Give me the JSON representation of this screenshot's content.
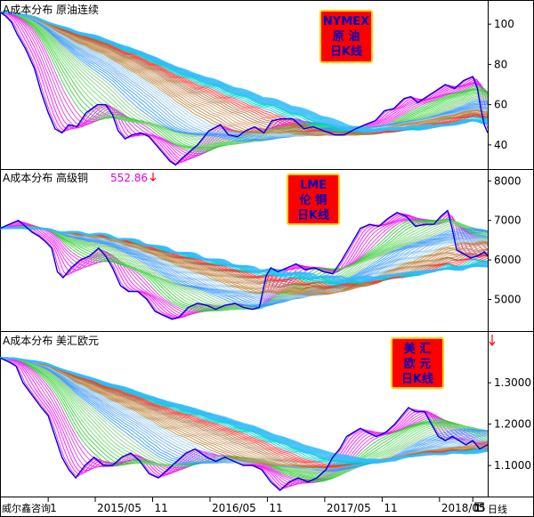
{
  "footer": {
    "left_label": "威尔鑫咨询",
    "period_label": "日线",
    "x_ticks": [
      {
        "label": "1",
        "value": 2014.92
      },
      {
        "label": "2015/05",
        "value": 2015.33
      },
      {
        "label": "11",
        "value": 2015.83
      },
      {
        "label": "2016/05",
        "value": 2016.33
      },
      {
        "label": "11",
        "value": 2016.83
      },
      {
        "label": "2017/05",
        "value": 2017.33
      },
      {
        "label": "11",
        "value": 2017.83
      },
      {
        "label": "2018/05",
        "value": 2018.33
      },
      {
        "label": "1",
        "value": 2018.62
      }
    ]
  },
  "colors": {
    "price_line": "#0000dd",
    "badge_fill": "#ff0000",
    "badge_border": "#ffd000",
    "badge_text": "#0000c0",
    "quote": "#e000e0",
    "arrow": "#ff0000",
    "frame": "#000000",
    "band_palette": [
      "#ff00ff",
      "#dd33dd",
      "#33cc33",
      "#66dd66",
      "#88cc88",
      "#3399ff",
      "#66aaee",
      "#99ccee",
      "#bb8844",
      "#cc9966",
      "#aa7744",
      "#ff3333",
      "#00cccc",
      "#33bbff"
    ]
  },
  "chart_data": [
    {
      "type": "line",
      "title": "A成本分布 原油连续",
      "quote": "",
      "badge": [
        "NYMEX",
        "原 油",
        "日K线"
      ],
      "ylim": [
        28,
        112
      ],
      "yticks": [
        40,
        60,
        80,
        100
      ],
      "xlim": [
        2014.5,
        2018.75
      ],
      "series": [
        {
          "values": [
            [
              2014.5,
              106
            ],
            [
              2014.55,
              104
            ],
            [
              2014.6,
              101
            ],
            [
              2014.65,
              95
            ],
            [
              2014.72,
              88
            ],
            [
              2014.8,
              78
            ],
            [
              2014.86,
              66
            ],
            [
              2014.92,
              56
            ],
            [
              2014.98,
              48
            ],
            [
              2015.04,
              46
            ],
            [
              2015.1,
              50
            ],
            [
              2015.17,
              49
            ],
            [
              2015.25,
              56
            ],
            [
              2015.35,
              60
            ],
            [
              2015.42,
              60
            ],
            [
              2015.48,
              55
            ],
            [
              2015.53,
              47
            ],
            [
              2015.59,
              43
            ],
            [
              2015.65,
              45
            ],
            [
              2015.73,
              46
            ],
            [
              2015.8,
              44
            ],
            [
              2015.86,
              40
            ],
            [
              2015.92,
              36
            ],
            [
              2015.98,
              32
            ],
            [
              2016.03,
              30
            ],
            [
              2016.08,
              33
            ],
            [
              2016.14,
              36
            ],
            [
              2016.22,
              40
            ],
            [
              2016.32,
              47
            ],
            [
              2016.42,
              50
            ],
            [
              2016.49,
              45
            ],
            [
              2016.57,
              44
            ],
            [
              2016.64,
              47
            ],
            [
              2016.72,
              49
            ],
            [
              2016.8,
              46
            ],
            [
              2016.87,
              52
            ],
            [
              2016.95,
              53
            ],
            [
              2017.05,
              53
            ],
            [
              2017.15,
              48
            ],
            [
              2017.23,
              49
            ],
            [
              2017.32,
              47
            ],
            [
              2017.42,
              45
            ],
            [
              2017.5,
              45
            ],
            [
              2017.6,
              48
            ],
            [
              2017.68,
              50
            ],
            [
              2017.77,
              52
            ],
            [
              2017.85,
              57
            ],
            [
              2017.93,
              58
            ],
            [
              2018.02,
              63
            ],
            [
              2018.08,
              64
            ],
            [
              2018.14,
              61
            ],
            [
              2018.22,
              64
            ],
            [
              2018.3,
              67
            ],
            [
              2018.38,
              70
            ],
            [
              2018.46,
              68
            ],
            [
              2018.54,
              72
            ],
            [
              2018.62,
              74
            ],
            [
              2018.66,
              68
            ],
            [
              2018.69,
              58
            ],
            [
              2018.72,
              50
            ],
            [
              2018.75,
              46
            ]
          ]
        }
      ]
    },
    {
      "type": "line",
      "title": "A成本分布 高级铜",
      "quote": "552.86",
      "badge": [
        "LME",
        "伦 铜",
        "日K线"
      ],
      "ylim": [
        4200,
        8300
      ],
      "yticks": [
        5000,
        6000,
        7000,
        8000
      ],
      "xlim": [
        2014.5,
        2018.75
      ],
      "series": [
        {
          "values": [
            [
              2014.5,
              6800
            ],
            [
              2014.58,
              6900
            ],
            [
              2014.66,
              7000
            ],
            [
              2014.72,
              6850
            ],
            [
              2014.78,
              6700
            ],
            [
              2014.84,
              6600
            ],
            [
              2014.9,
              6450
            ],
            [
              2014.95,
              6300
            ],
            [
              2015.0,
              5700
            ],
            [
              2015.05,
              5550
            ],
            [
              2015.12,
              5800
            ],
            [
              2015.2,
              6000
            ],
            [
              2015.28,
              6100
            ],
            [
              2015.36,
              6300
            ],
            [
              2015.42,
              6100
            ],
            [
              2015.48,
              5800
            ],
            [
              2015.55,
              5350
            ],
            [
              2015.62,
              5200
            ],
            [
              2015.7,
              5200
            ],
            [
              2015.78,
              5000
            ],
            [
              2015.85,
              4700
            ],
            [
              2015.92,
              4600
            ],
            [
              2016.0,
              4500
            ],
            [
              2016.06,
              4550
            ],
            [
              2016.14,
              4800
            ],
            [
              2016.22,
              4900
            ],
            [
              2016.3,
              4850
            ],
            [
              2016.38,
              4750
            ],
            [
              2016.46,
              4850
            ],
            [
              2016.55,
              4900
            ],
            [
              2016.62,
              4800
            ],
            [
              2016.7,
              4750
            ],
            [
              2016.76,
              4800
            ],
            [
              2016.82,
              5600
            ],
            [
              2016.86,
              5800
            ],
            [
              2016.92,
              5700
            ],
            [
              2017.0,
              5800
            ],
            [
              2017.08,
              5900
            ],
            [
              2017.16,
              5750
            ],
            [
              2017.24,
              5800
            ],
            [
              2017.32,
              5700
            ],
            [
              2017.4,
              5650
            ],
            [
              2017.48,
              6000
            ],
            [
              2017.56,
              6400
            ],
            [
              2017.64,
              6800
            ],
            [
              2017.72,
              6900
            ],
            [
              2017.8,
              6850
            ],
            [
              2017.88,
              7050
            ],
            [
              2017.96,
              7200
            ],
            [
              2018.04,
              7100
            ],
            [
              2018.12,
              6850
            ],
            [
              2018.2,
              6900
            ],
            [
              2018.28,
              6900
            ],
            [
              2018.34,
              7100
            ],
            [
              2018.4,
              7250
            ],
            [
              2018.44,
              6800
            ],
            [
              2018.48,
              6250
            ],
            [
              2018.54,
              6150
            ],
            [
              2018.6,
              6050
            ],
            [
              2018.66,
              6100
            ],
            [
              2018.72,
              6200
            ],
            [
              2018.75,
              6100
            ]
          ]
        }
      ]
    },
    {
      "type": "line",
      "title": "A成本分布 美汇欧元",
      "quote": "",
      "badge": [
        "美 汇",
        "欧 元",
        "日K线"
      ],
      "ylim": [
        1.025,
        1.425
      ],
      "yticks": [
        1.1,
        1.2,
        1.3
      ],
      "ytick_labels": [
        "1.1000",
        "1.2000",
        "1.3000"
      ],
      "xlim": [
        2014.5,
        2018.75
      ],
      "series": [
        {
          "values": [
            [
              2014.5,
              1.36
            ],
            [
              2014.58,
              1.35
            ],
            [
              2014.64,
              1.34
            ],
            [
              2014.7,
              1.3
            ],
            [
              2014.78,
              1.27
            ],
            [
              2014.86,
              1.24
            ],
            [
              2014.92,
              1.22
            ],
            [
              2014.98,
              1.17
            ],
            [
              2015.04,
              1.12
            ],
            [
              2015.1,
              1.09
            ],
            [
              2015.16,
              1.07
            ],
            [
              2015.24,
              1.1
            ],
            [
              2015.32,
              1.12
            ],
            [
              2015.4,
              1.1
            ],
            [
              2015.48,
              1.1
            ],
            [
              2015.56,
              1.12
            ],
            [
              2015.64,
              1.13
            ],
            [
              2015.72,
              1.11
            ],
            [
              2015.8,
              1.08
            ],
            [
              2015.88,
              1.07
            ],
            [
              2015.96,
              1.09
            ],
            [
              2016.04,
              1.11
            ],
            [
              2016.12,
              1.13
            ],
            [
              2016.2,
              1.14
            ],
            [
              2016.3,
              1.12
            ],
            [
              2016.38,
              1.11
            ],
            [
              2016.46,
              1.12
            ],
            [
              2016.54,
              1.11
            ],
            [
              2016.62,
              1.1
            ],
            [
              2016.7,
              1.1
            ],
            [
              2016.78,
              1.09
            ],
            [
              2016.86,
              1.06
            ],
            [
              2016.94,
              1.04
            ],
            [
              2017.02,
              1.06
            ],
            [
              2017.1,
              1.07
            ],
            [
              2017.18,
              1.06
            ],
            [
              2017.26,
              1.07
            ],
            [
              2017.34,
              1.09
            ],
            [
              2017.4,
              1.12
            ],
            [
              2017.46,
              1.14
            ],
            [
              2017.52,
              1.17
            ],
            [
              2017.58,
              1.18
            ],
            [
              2017.64,
              1.19
            ],
            [
              2017.7,
              1.18
            ],
            [
              2017.78,
              1.17
            ],
            [
              2017.86,
              1.18
            ],
            [
              2017.94,
              1.2
            ],
            [
              2018.0,
              1.22
            ],
            [
              2018.06,
              1.24
            ],
            [
              2018.12,
              1.23
            ],
            [
              2018.2,
              1.23
            ],
            [
              2018.26,
              1.2
            ],
            [
              2018.32,
              1.17
            ],
            [
              2018.38,
              1.16
            ],
            [
              2018.44,
              1.17
            ],
            [
              2018.5,
              1.16
            ],
            [
              2018.56,
              1.15
            ],
            [
              2018.62,
              1.16
            ],
            [
              2018.68,
              1.14
            ],
            [
              2018.75,
              1.15
            ]
          ]
        }
      ]
    }
  ]
}
